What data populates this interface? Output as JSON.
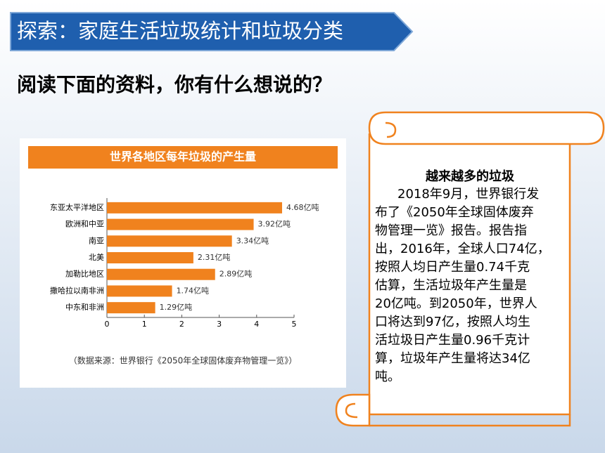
{
  "header": {
    "title": "探索：家庭生活垃圾统计和垃圾分类"
  },
  "prompt": "阅读下面的资料，你有什么想说的？",
  "chart_data": {
    "type": "bar",
    "orientation": "horizontal",
    "title": "世界各地区每年垃圾的产生量",
    "categories": [
      "东亚太平洋地区",
      "欧洲和中亚",
      "南亚",
      "北美",
      "加勒比地区",
      "撒哈拉以南非洲",
      "中东和非洲"
    ],
    "values": [
      4.68,
      3.92,
      3.34,
      2.31,
      2.89,
      1.74,
      1.29
    ],
    "value_labels": [
      "4.68亿吨",
      "3.92亿吨",
      "3.34亿吨",
      "2.31亿吨",
      "2.89亿吨",
      "1.74亿吨",
      "1.29亿吨"
    ],
    "color": "#f0821e",
    "xlim": [
      0,
      5
    ],
    "xticks": [
      0,
      1,
      2,
      3,
      4,
      5
    ],
    "note": "（数据来源：世界银行《2050年全球固体废弃物管理一览》）"
  },
  "scroll": {
    "title": "越来越多的垃圾",
    "lines": [
      "2018年9月，世界银行发",
      "布了《2050年全球固体废弃",
      "物管理一览》报告。报告指",
      "出，2016年，全球人口74亿，",
      "按照人均日产生量0.74千克",
      "估算，生活垃圾年产生量是",
      "20亿吨。到2050年，世界人",
      "口将达到97亿，按照人均生",
      "活垃圾日产生量0.96千克计",
      "算，垃圾年产生量将达34亿",
      "吨。"
    ]
  }
}
